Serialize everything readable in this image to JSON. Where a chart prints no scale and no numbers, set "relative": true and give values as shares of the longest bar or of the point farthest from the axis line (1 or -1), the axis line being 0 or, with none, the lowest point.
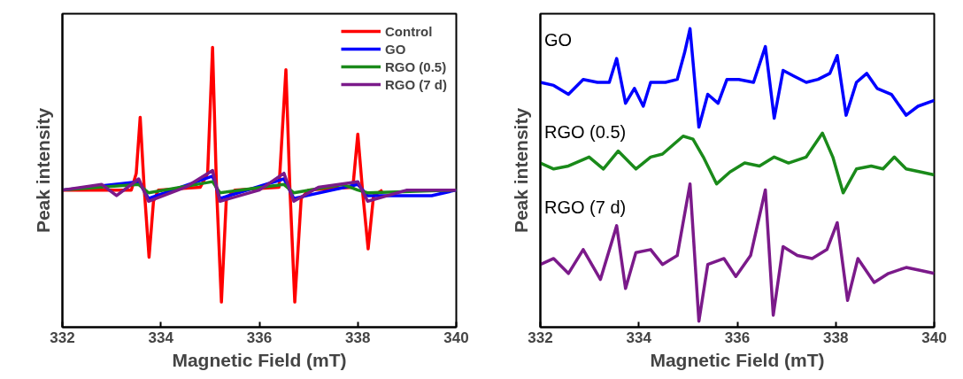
{
  "chart_data": [
    {
      "type": "line",
      "relative": true,
      "xlabel": "Magnetic Field (mT)",
      "ylabel": "Peak intensity",
      "xlim": [
        332,
        340
      ],
      "xticks": [
        332,
        334,
        336,
        338,
        340
      ],
      "legend": "top right",
      "grid": false,
      "series": [
        {
          "name": "Control",
          "color": "#ff0000",
          "x": [
            332,
            333.4,
            333.5,
            333.58,
            333.66,
            333.76,
            333.85,
            333.95,
            334.8,
            334.95,
            335.05,
            335.13,
            335.23,
            335.33,
            335.5,
            336.4,
            336.54,
            336.62,
            336.72,
            336.85,
            337.0,
            337.9,
            338.0,
            338.1,
            338.21,
            338.32,
            338.5
          ],
          "values": [
            0.49,
            0.49,
            0.55,
            0.75,
            0.5,
            0.25,
            0.45,
            0.49,
            0.5,
            0.55,
            1.0,
            0.5,
            0.09,
            0.46,
            0.49,
            0.5,
            0.92,
            0.5,
            0.09,
            0.46,
            0.49,
            0.5,
            0.69,
            0.48,
            0.28,
            0.47,
            0.49
          ]
        },
        {
          "name": "GO",
          "color": "#0000ff",
          "x": [
            332,
            333.55,
            333.75,
            335.05,
            335.2,
            336.5,
            336.7,
            338.0,
            338.2,
            339.5,
            340
          ],
          "values": [
            0.49,
            0.52,
            0.46,
            0.54,
            0.46,
            0.53,
            0.46,
            0.51,
            0.47,
            0.47,
            0.49
          ]
        },
        {
          "name": "RGO (0.5)",
          "color": "#1a8a1a",
          "x": [
            332,
            333.55,
            333.75,
            335.05,
            335.2,
            336.5,
            336.7,
            337.7,
            338.0,
            338.2,
            340
          ],
          "values": [
            0.49,
            0.51,
            0.48,
            0.52,
            0.48,
            0.51,
            0.48,
            0.51,
            0.49,
            0.48,
            0.49
          ]
        },
        {
          "name": "RGO (7 d)",
          "color": "#7b1a8a",
          "x": [
            332,
            332.8,
            333.1,
            333.55,
            333.75,
            334.5,
            335.05,
            335.2,
            336.0,
            336.5,
            336.7,
            337.2,
            338.0,
            338.2,
            339,
            340
          ],
          "values": [
            0.49,
            0.51,
            0.47,
            0.53,
            0.45,
            0.5,
            0.56,
            0.45,
            0.49,
            0.55,
            0.45,
            0.5,
            0.52,
            0.45,
            0.49,
            0.49
          ]
        }
      ]
    },
    {
      "type": "line",
      "relative": true,
      "xlabel": "Magnetic Field (mT)",
      "ylabel": "Peak intensity",
      "xlim": [
        332,
        340
      ],
      "xticks": [
        332,
        334,
        336,
        338,
        340
      ],
      "legend": false,
      "grid": false,
      "series": [
        {
          "name": "GO",
          "color": "#0000ff",
          "x": [
            332.0,
            332.27,
            332.57,
            332.87,
            333.16,
            333.4,
            333.55,
            333.73,
            333.91,
            334.09,
            334.24,
            334.54,
            334.78,
            334.93,
            335.04,
            335.22,
            335.4,
            335.61,
            335.79,
            336.03,
            336.33,
            336.57,
            336.75,
            336.93,
            337.16,
            337.4,
            337.64,
            337.88,
            338.03,
            338.21,
            338.42,
            338.63,
            338.84,
            339.13,
            339.43,
            339.67,
            340.0
          ],
          "values": [
            0.82,
            0.81,
            0.78,
            0.83,
            0.82,
            0.82,
            0.9,
            0.75,
            0.8,
            0.74,
            0.82,
            0.82,
            0.83,
            0.92,
            1.0,
            0.67,
            0.78,
            0.75,
            0.83,
            0.83,
            0.82,
            0.94,
            0.7,
            0.86,
            0.84,
            0.82,
            0.83,
            0.85,
            0.91,
            0.71,
            0.82,
            0.85,
            0.8,
            0.78,
            0.71,
            0.74,
            0.76
          ]
        },
        {
          "name": "RGO (0.5)",
          "color": "#1a8a1a",
          "x": [
            332.0,
            332.27,
            332.57,
            332.99,
            333.28,
            333.58,
            333.94,
            334.24,
            334.48,
            334.9,
            335.1,
            335.31,
            335.58,
            335.85,
            336.15,
            336.45,
            336.75,
            337.04,
            337.4,
            337.73,
            337.94,
            338.15,
            338.42,
            338.72,
            338.96,
            339.19,
            339.43,
            339.73,
            340.0
          ],
          "values": [
            0.55,
            0.53,
            0.54,
            0.57,
            0.53,
            0.59,
            0.53,
            0.57,
            0.58,
            0.64,
            0.63,
            0.57,
            0.48,
            0.52,
            0.55,
            0.54,
            0.57,
            0.55,
            0.57,
            0.65,
            0.57,
            0.45,
            0.53,
            0.54,
            0.53,
            0.57,
            0.53,
            0.52,
            0.51
          ]
        },
        {
          "name": "RGO (7 d)",
          "color": "#7b1a8a",
          "x": [
            332.0,
            332.27,
            332.57,
            332.87,
            333.22,
            333.55,
            333.73,
            333.94,
            334.24,
            334.48,
            334.78,
            335.04,
            335.22,
            335.4,
            335.73,
            335.97,
            336.27,
            336.57,
            336.73,
            336.93,
            337.22,
            337.52,
            337.82,
            338.03,
            338.24,
            338.45,
            338.78,
            339.07,
            339.43,
            339.73,
            340.0
          ],
          "values": [
            0.21,
            0.23,
            0.18,
            0.26,
            0.16,
            0.34,
            0.13,
            0.25,
            0.26,
            0.21,
            0.24,
            0.48,
            0.02,
            0.21,
            0.23,
            0.17,
            0.24,
            0.46,
            0.04,
            0.27,
            0.24,
            0.23,
            0.26,
            0.35,
            0.09,
            0.23,
            0.15,
            0.18,
            0.2,
            0.19,
            0.18
          ]
        }
      ]
    }
  ]
}
